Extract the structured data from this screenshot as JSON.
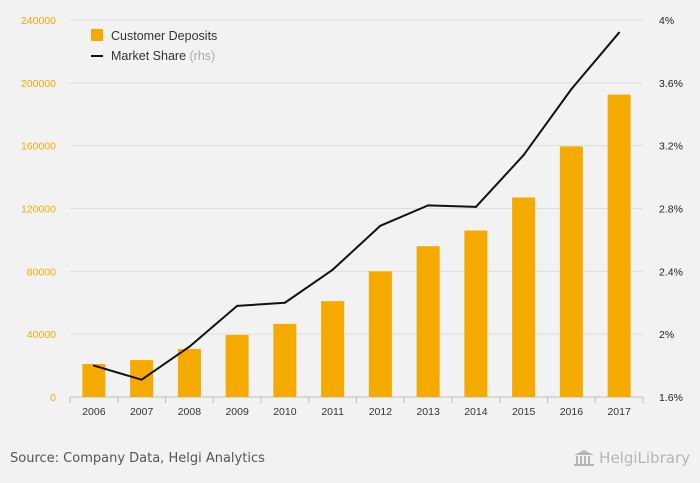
{
  "chart_data": {
    "type": "bar",
    "categories": [
      "2006",
      "2007",
      "2008",
      "2009",
      "2010",
      "2011",
      "2012",
      "2013",
      "2014",
      "2015",
      "2016",
      "2017"
    ],
    "series": [
      {
        "name": "Customer Deposits",
        "type": "bar",
        "axis": "left",
        "color": "#f5aa00",
        "values": [
          21000,
          23500,
          30500,
          39500,
          46500,
          61000,
          80000,
          96000,
          106000,
          127000,
          159500,
          192500
        ]
      },
      {
        "name": "Market Share",
        "name_suffix": "(rhs)",
        "type": "line",
        "axis": "right",
        "color": "#111111",
        "values": [
          1.8,
          1.71,
          1.92,
          2.18,
          2.2,
          2.41,
          2.69,
          2.82,
          2.81,
          3.14,
          3.56,
          3.92
        ]
      }
    ],
    "y_left": {
      "ylim": [
        0,
        240000
      ],
      "ticks": [
        "0",
        "40000",
        "80000",
        "120000",
        "160000",
        "200000",
        "240000"
      ],
      "label_color": "#f5aa00"
    },
    "y_right": {
      "ylim": [
        1.6,
        4.0
      ],
      "ticks": [
        "1.6%",
        "2%",
        "2.4%",
        "2.8%",
        "3.2%",
        "3.6%",
        "4%"
      ]
    },
    "grid": true,
    "legend_position": "top-left"
  },
  "footer": {
    "source": "Source: Company Data, Helgi Analytics",
    "logo_text": "HelgiLibrary"
  }
}
